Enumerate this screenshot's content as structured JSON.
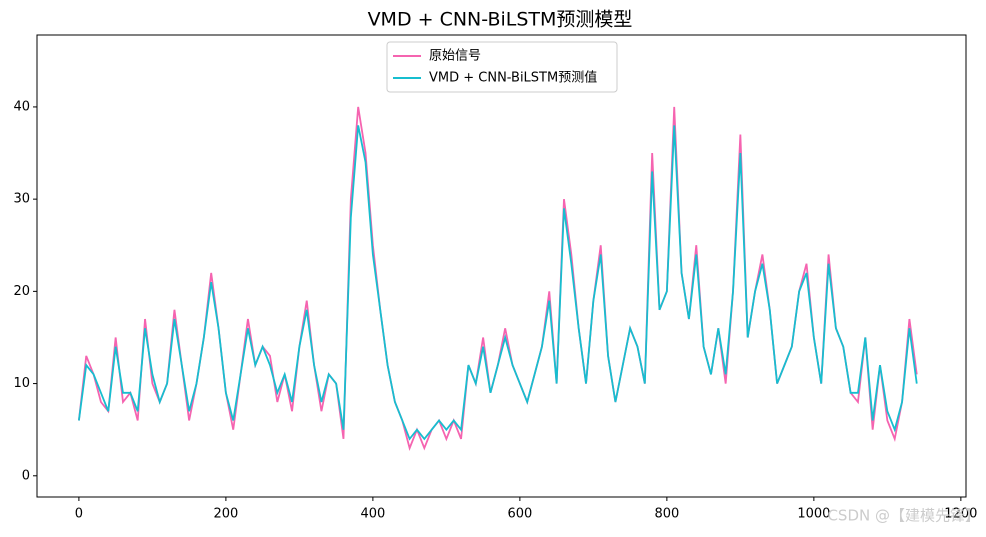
{
  "chart_data": {
    "type": "line",
    "title": "VMD + CNN-BiLSTM预测模型",
    "x": [
      0,
      10,
      20,
      30,
      40,
      50,
      60,
      70,
      80,
      90,
      100,
      110,
      120,
      130,
      140,
      150,
      160,
      170,
      180,
      190,
      200,
      210,
      220,
      230,
      240,
      250,
      260,
      270,
      280,
      290,
      300,
      310,
      320,
      330,
      340,
      350,
      360,
      370,
      380,
      390,
      400,
      410,
      420,
      430,
      440,
      450,
      460,
      470,
      480,
      490,
      500,
      510,
      520,
      530,
      540,
      550,
      560,
      570,
      580,
      590,
      600,
      610,
      620,
      630,
      640,
      650,
      660,
      670,
      680,
      690,
      700,
      710,
      720,
      730,
      740,
      750,
      760,
      770,
      780,
      790,
      800,
      810,
      820,
      830,
      840,
      850,
      860,
      870,
      880,
      890,
      900,
      910,
      920,
      930,
      940,
      950,
      960,
      970,
      980,
      990,
      1000,
      1010,
      1020,
      1030,
      1040,
      1050,
      1060,
      1070,
      1080,
      1090,
      1100,
      1110,
      1120,
      1130,
      1140
    ],
    "series": [
      {
        "name": "原始信号",
        "color": "#f564b0",
        "values": [
          6,
          13,
          11,
          8,
          7,
          15,
          8,
          9,
          6,
          17,
          10,
          8,
          10,
          18,
          12,
          6,
          10,
          15,
          22,
          16,
          9,
          5,
          11,
          17,
          12,
          14,
          13,
          8,
          11,
          7,
          14,
          19,
          12,
          7,
          11,
          10,
          4,
          30,
          40,
          35,
          25,
          18,
          12,
          8,
          6,
          3,
          5,
          3,
          5,
          6,
          4,
          6,
          4,
          12,
          10,
          15,
          9,
          12,
          16,
          12,
          10,
          8,
          11,
          14,
          20,
          10,
          30,
          24,
          16,
          10,
          19,
          25,
          13,
          8,
          12,
          16,
          14,
          10,
          35,
          18,
          20,
          40,
          22,
          17,
          25,
          14,
          11,
          16,
          10,
          20,
          37,
          15,
          20,
          24,
          18,
          10,
          12,
          14,
          20,
          23,
          15,
          10,
          24,
          16,
          14,
          9,
          8,
          15,
          5,
          12,
          6,
          4,
          8,
          17,
          11
        ]
      },
      {
        "name": "VMD + CNN-BiLSTM预测值",
        "color": "#17becf",
        "values": [
          6,
          12,
          11,
          9,
          7,
          14,
          9,
          9,
          7,
          16,
          11,
          8,
          10,
          17,
          12,
          7,
          10,
          15,
          21,
          16,
          9,
          6,
          11,
          16,
          12,
          14,
          12,
          9,
          11,
          8,
          14,
          18,
          12,
          8,
          11,
          10,
          5,
          28,
          38,
          34,
          24,
          18,
          12,
          8,
          6,
          4,
          5,
          4,
          5,
          6,
          5,
          6,
          5,
          12,
          10,
          14,
          9,
          12,
          15,
          12,
          10,
          8,
          11,
          14,
          19,
          10,
          29,
          23,
          16,
          10,
          19,
          24,
          13,
          8,
          12,
          16,
          14,
          10,
          33,
          18,
          20,
          38,
          22,
          17,
          24,
          14,
          11,
          16,
          11,
          20,
          35,
          15,
          20,
          23,
          18,
          10,
          12,
          14,
          20,
          22,
          15,
          10,
          23,
          16,
          14,
          9,
          9,
          15,
          6,
          12,
          7,
          5,
          8,
          16,
          10
        ]
      }
    ],
    "xlim": [
      -57,
      1207
    ],
    "ylim": [
      -2.3,
      47.8
    ],
    "xticks": [
      0,
      200,
      400,
      600,
      800,
      1000,
      1200
    ],
    "yticks": [
      0,
      10,
      20,
      30,
      40
    ],
    "legend": "upper center",
    "watermark": "CSDN @【建模先锋】"
  }
}
